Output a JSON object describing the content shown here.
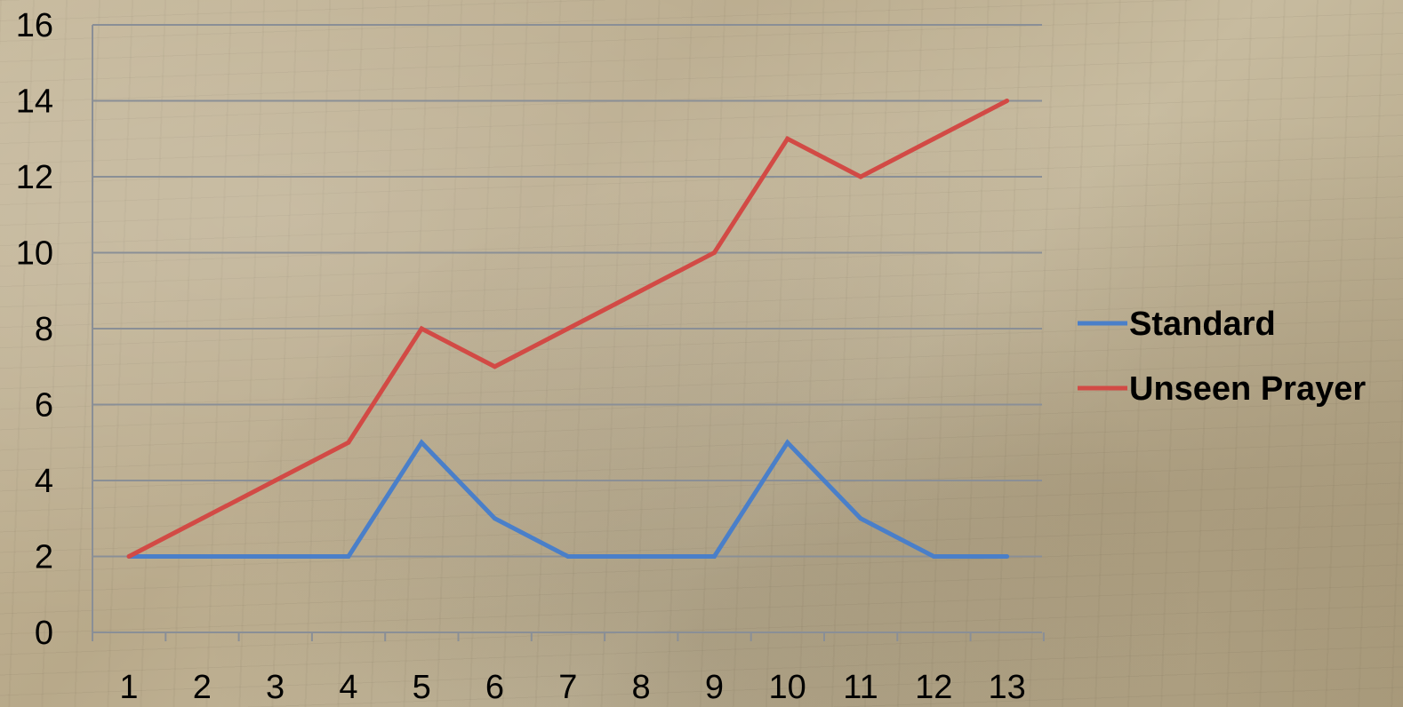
{
  "chart_data": {
    "type": "line",
    "x": [
      "1",
      "2",
      "3",
      "4",
      "5",
      "6",
      "7",
      "8",
      "9",
      "10",
      "11",
      "12",
      "13"
    ],
    "series": [
      {
        "name": "Standard",
        "color": "#4a7fc9",
        "values": [
          2,
          2,
          2,
          2,
          5,
          3,
          2,
          2,
          2,
          5,
          3,
          2,
          2
        ]
      },
      {
        "name": "Unseen Prayer",
        "color": "#d24a45",
        "values": [
          2,
          3,
          4,
          5,
          8,
          7,
          8,
          9,
          10,
          13,
          12,
          13,
          14
        ]
      }
    ],
    "ylim": [
      0,
      16
    ],
    "yticks": [
      0,
      2,
      4,
      6,
      8,
      10,
      12,
      14,
      16
    ],
    "grid": true,
    "legend": "right",
    "title": "",
    "xlabel": "",
    "ylabel": ""
  }
}
